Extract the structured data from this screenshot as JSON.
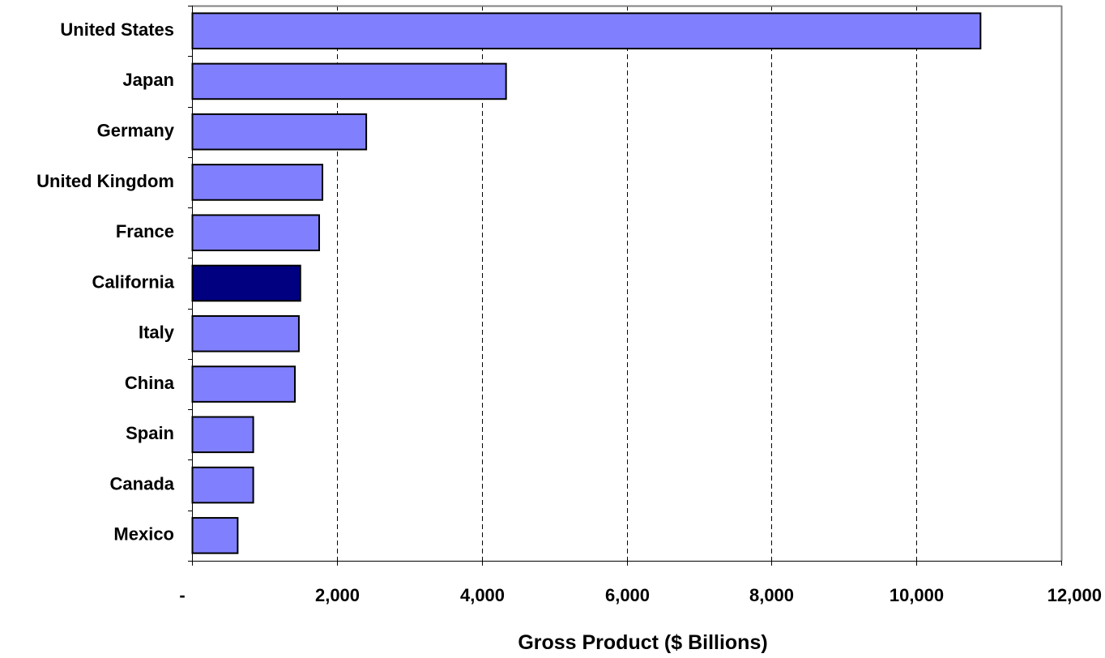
{
  "chart_data": {
    "type": "bar",
    "orientation": "horizontal",
    "categories": [
      "United States",
      "Japan",
      "Germany",
      "United Kingdom",
      "France",
      "California",
      "Italy",
      "China",
      "Spain",
      "Canada",
      "Mexico"
    ],
    "values": [
      10880,
      4330,
      2400,
      1795,
      1750,
      1490,
      1470,
      1415,
      840,
      840,
      625
    ],
    "highlight": "California",
    "xlabel": "Gross Product ($ Billions)",
    "xlim": [
      0,
      12000
    ],
    "xticks": [
      {
        "value": 0,
        "label": "-"
      },
      {
        "value": 2000,
        "label": "2,000"
      },
      {
        "value": 4000,
        "label": "4,000"
      },
      {
        "value": 6000,
        "label": "6,000"
      },
      {
        "value": 8000,
        "label": "8,000"
      },
      {
        "value": 10000,
        "label": "10,000"
      },
      {
        "value": 12000,
        "label": "12,000"
      }
    ],
    "grid": "vertical dashed",
    "colors": {
      "bar": "#8080ff",
      "highlight": "#000080",
      "outline": "#000000",
      "frame": "#808080",
      "grid": "#000000"
    }
  }
}
